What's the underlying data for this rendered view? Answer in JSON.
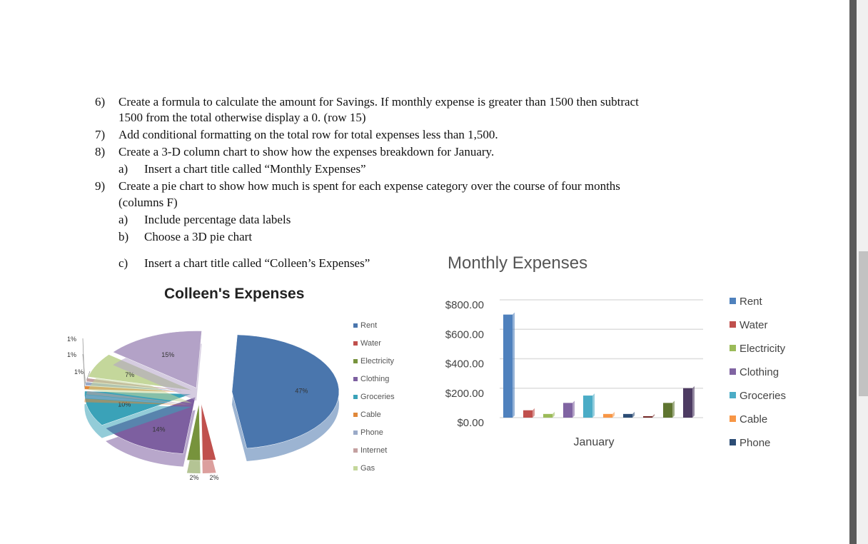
{
  "instructions": [
    {
      "num": "6)",
      "text": "Create a formula to calculate the amount for Savings. If monthly expense is greater than 1500 then subtract",
      "sub": false
    },
    {
      "num": "",
      "text": "1500 from the total otherwise display a 0. (row 15)",
      "sub": false
    },
    {
      "num": "7)",
      "text": "Add conditional formatting on the total row for total expenses less than 1,500.",
      "sub": false
    },
    {
      "num": "8)",
      "text": "Create a 3-D column chart to show how the expenses breakdown for January.",
      "sub": false
    },
    {
      "num": "a)",
      "text": "Insert a chart title called “Monthly Expenses”",
      "sub": true
    },
    {
      "num": "9)",
      "text": "Create a pie chart to show how much is spent for each expense category over the course of four months",
      "sub": false
    },
    {
      "num": "",
      "text": "(columns F)",
      "sub": false
    },
    {
      "num": "a)",
      "text": "Include percentage data labels",
      "sub": true
    },
    {
      "num": "b)",
      "text": "Choose a 3D pie chart",
      "sub": true
    },
    {
      "num": "c)",
      "text": "Insert a chart title called “Colleen’s Expenses”",
      "sub": true
    }
  ],
  "chart_data": [
    {
      "type": "pie",
      "title": "Colleen's Expenses",
      "legend": "right",
      "3d": true,
      "categories": [
        "Rent",
        "Water",
        "Electricity",
        "Clothing",
        "Groceries",
        "Cable",
        "Phone",
        "Internet",
        "Gas",
        ""
      ],
      "values": [
        47,
        2,
        2,
        14,
        10,
        1,
        1,
        1,
        7,
        15
      ],
      "labels": [
        "47%",
        "2%",
        "2%",
        "14%",
        "10%",
        "1%",
        "1%",
        "1%",
        "7%",
        "15%"
      ],
      "colors": [
        "#4a76ad",
        "#c0504d",
        "#77933c",
        "#7d5fa0",
        "#3aa2b8",
        "#e0883a",
        "#9aaac8",
        "#c4a0a0",
        "#c4d79b",
        "#b3a2c7"
      ]
    },
    {
      "type": "bar",
      "title": "Monthly Expenses",
      "3d": true,
      "legend": "right",
      "grid": true,
      "categories": [
        "January"
      ],
      "ylim": [
        0,
        800
      ],
      "yticks": [
        "$800.00",
        "$600.00",
        "$400.00",
        "$200.00",
        "$0.00"
      ],
      "series": [
        {
          "name": "Rent",
          "value": 700,
          "color": "#4f81bd"
        },
        {
          "name": "Water",
          "value": 50,
          "color": "#c0504d"
        },
        {
          "name": "Electricity",
          "value": 25,
          "color": "#9bbb59"
        },
        {
          "name": "Clothing",
          "value": 100,
          "color": "#8064a2"
        },
        {
          "name": "Groceries",
          "value": 150,
          "color": "#4bacc6"
        },
        {
          "name": "Cable",
          "value": 25,
          "color": "#f79646"
        },
        {
          "name": "Phone",
          "value": 25,
          "color": "#2c4d75"
        },
        {
          "value": 10,
          "color": "#772c2a"
        },
        {
          "value": 100,
          "color": "#5f7530"
        },
        {
          "value": 200,
          "color": "#4d3b62"
        }
      ]
    }
  ]
}
